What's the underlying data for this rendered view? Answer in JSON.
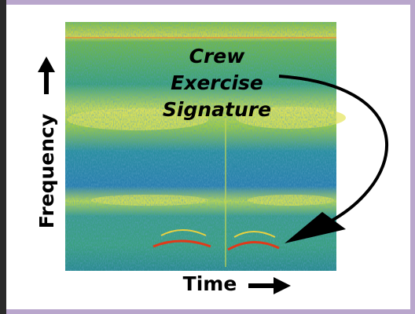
{
  "annotation": {
    "lines": [
      "Crew",
      "Exercise",
      "Signature"
    ]
  },
  "axes": {
    "y_label": "Frequency",
    "x_label": "Time"
  }
}
